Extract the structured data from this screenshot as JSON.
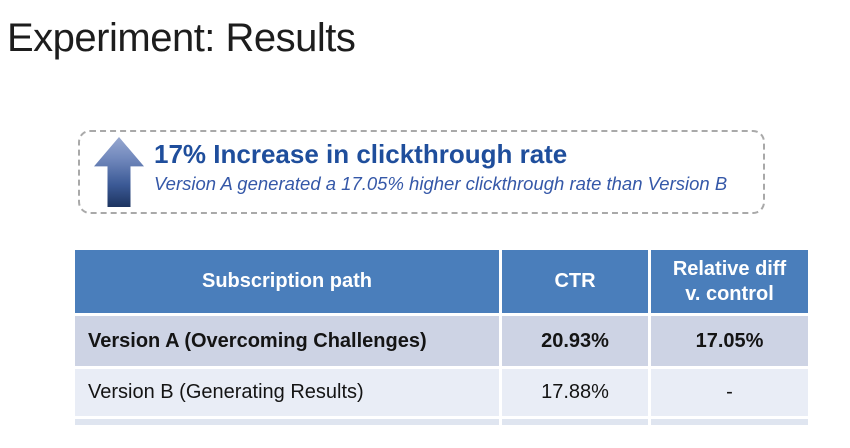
{
  "slide": {
    "title": "Experiment: Results"
  },
  "callout": {
    "icon": "up-arrow-icon",
    "headline": "17% Increase in clickthrough rate",
    "subtext": "Version A generated a 17.05% higher clickthrough rate than Version B"
  },
  "table": {
    "headers": [
      "Subscription path",
      "CTR",
      "Relative diff\nv. control"
    ],
    "rows": [
      {
        "cells": [
          "Version A (Overcoming Challenges)",
          "20.93%",
          "17.05%"
        ],
        "emphasis": true
      },
      {
        "cells": [
          "Version B (Generating Results)",
          "17.88%",
          "-"
        ],
        "emphasis": false
      }
    ]
  },
  "colors": {
    "table_header_blue": "#4a7ebb",
    "row_a_background": "#cdd3e4",
    "row_b_background": "#e9edf6",
    "headline_blue": "#1f4e9c",
    "subtext_blue": "#3558a8",
    "arrow_gradient_top": "#97a8d0",
    "arrow_gradient_bottom": "#1d3460",
    "dashed_border_gray": "#a9a9a9"
  }
}
